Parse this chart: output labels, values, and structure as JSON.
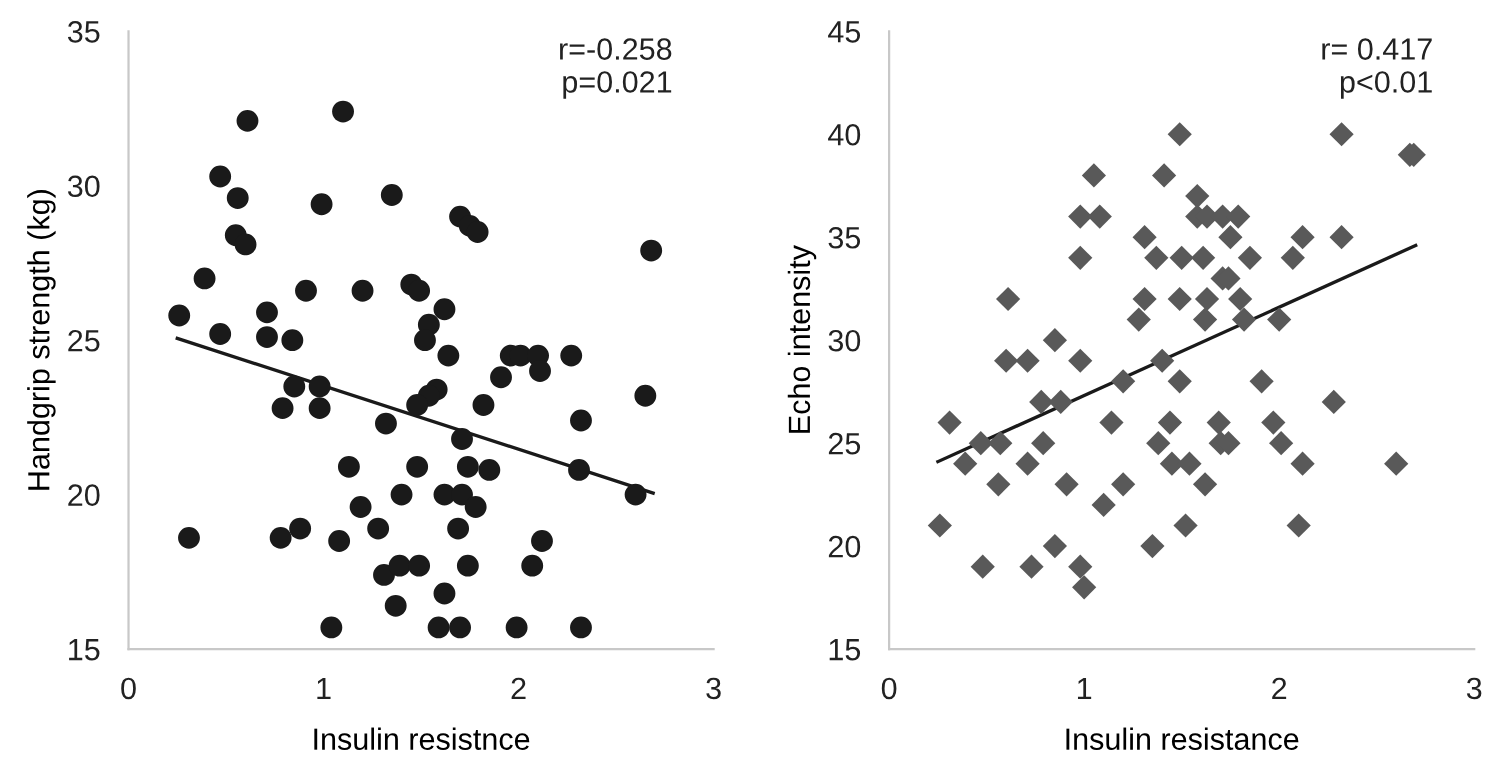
{
  "chart_data": [
    {
      "type": "scatter",
      "xlabel": "Insulin resistnce",
      "ylabel": "Handgrip strength (kg)",
      "xlim": [
        0,
        3
      ],
      "xticks": [
        0,
        1,
        2,
        3
      ],
      "ylim": [
        15,
        35
      ],
      "yticks": [
        15,
        20,
        25,
        30,
        35
      ],
      "grid": false,
      "annotations": [
        "r=-0.258\np=0.021"
      ],
      "series": [
        {
          "marker": "circle",
          "color": "#1a1a1a",
          "x": [
            0.61,
            1.1,
            0.47,
            0.56,
            0.99,
            1.35,
            0.55,
            0.6,
            1.7,
            1.75,
            1.79,
            2.68,
            0.39,
            0.91,
            1.2,
            1.45,
            1.49,
            1.62,
            0.26,
            0.71,
            0.47,
            0.71,
            0.84,
            1.54,
            1.52,
            1.64,
            1.96,
            2.01,
            2.1,
            2.27,
            2.11,
            1.91,
            0.85,
            0.98,
            1.58,
            1.54,
            1.48,
            0.79,
            0.98,
            1.82,
            2.65,
            1.32,
            2.32,
            1.71,
            1.13,
            1.48,
            1.74,
            1.85,
            2.31,
            1.4,
            1.62,
            1.71,
            2.6,
            1.19,
            1.78,
            0.31,
            0.78,
            0.88,
            1.08,
            1.28,
            1.69,
            2.12,
            1.31,
            1.39,
            1.49,
            1.74,
            2.07,
            1.37,
            1.62,
            1.04,
            1.59,
            1.7,
            1.99,
            2.32
          ],
          "values": [
            32.1,
            32.4,
            30.3,
            29.6,
            29.4,
            29.7,
            28.4,
            28.1,
            29.0,
            28.7,
            28.5,
            27.9,
            27.0,
            26.6,
            26.6,
            26.8,
            26.6,
            26.0,
            25.8,
            25.9,
            25.2,
            25.1,
            25.0,
            25.5,
            25.0,
            24.5,
            24.5,
            24.5,
            24.5,
            24.5,
            24.0,
            23.8,
            23.5,
            23.5,
            23.4,
            23.2,
            22.9,
            22.8,
            22.8,
            22.9,
            23.2,
            22.3,
            22.4,
            21.8,
            20.9,
            20.9,
            20.9,
            20.8,
            20.8,
            20.0,
            20.0,
            20.0,
            20.0,
            19.6,
            19.6,
            18.6,
            18.6,
            18.9,
            18.5,
            18.9,
            18.9,
            18.5,
            17.4,
            17.7,
            17.7,
            17.7,
            17.7,
            16.4,
            16.8,
            15.7,
            15.7,
            15.7,
            15.7,
            15.7
          ]
        },
        {
          "type": "line",
          "marker": "none",
          "color": "#1a1a1a",
          "x": [
            0.25,
            2.69
          ],
          "values": [
            25.06,
            20.05
          ]
        }
      ]
    },
    {
      "type": "scatter",
      "xlabel": "Insulin resistance",
      "ylabel": "Echo intensity",
      "xlim": [
        0,
        3
      ],
      "xticks": [
        0,
        1,
        2,
        3
      ],
      "ylim": [
        15,
        45
      ],
      "yticks": [
        15,
        20,
        25,
        30,
        35,
        40,
        45
      ],
      "grid": false,
      "annotations": [
        "r= 0.417\np<0.01"
      ],
      "series": [
        {
          "marker": "diamond",
          "color": "#595959",
          "x": [
            1.49,
            2.32,
            2.67,
            2.69,
            1.05,
            1.41,
            1.58,
            0.98,
            1.08,
            1.58,
            1.63,
            1.71,
            1.79,
            1.31,
            1.75,
            2.12,
            2.32,
            0.98,
            1.37,
            1.5,
            1.61,
            1.85,
            2.07,
            1.71,
            1.74,
            0.61,
            1.31,
            1.49,
            1.63,
            1.8,
            1.28,
            1.62,
            1.82,
            2.0,
            0.85,
            0.6,
            0.71,
            0.98,
            1.4,
            1.2,
            1.49,
            1.91,
            0.78,
            0.88,
            2.28,
            0.31,
            1.14,
            1.44,
            1.69,
            1.97,
            0.47,
            0.57,
            0.79,
            1.38,
            1.7,
            1.74,
            2.01,
            0.39,
            0.71,
            1.45,
            1.54,
            2.12,
            2.6,
            0.56,
            0.91,
            1.2,
            1.62,
            1.1,
            0.26,
            1.52,
            2.1,
            0.85,
            1.35,
            0.48,
            0.73,
            0.98,
            1.0
          ],
          "values": [
            40,
            40,
            39,
            39,
            38,
            38,
            37,
            36,
            36,
            36,
            36,
            36,
            36,
            35,
            35,
            35,
            35,
            34,
            34,
            34,
            34,
            34,
            34,
            33,
            33,
            32,
            32,
            32,
            32,
            32,
            31,
            31,
            31,
            31,
            30,
            29,
            29,
            29,
            29,
            28,
            28,
            28,
            27,
            27,
            27,
            26,
            26,
            26,
            26,
            26,
            25,
            25,
            25,
            25,
            25,
            25,
            25,
            24,
            24,
            24,
            24,
            24,
            24,
            23,
            23,
            23,
            23,
            22,
            21,
            21,
            21,
            20,
            20,
            19,
            19,
            19,
            18
          ]
        },
        {
          "type": "line",
          "marker": "none",
          "color": "#1a1a1a",
          "x": [
            0.25,
            2.7
          ],
          "values": [
            24.1,
            34.6
          ]
        }
      ]
    }
  ]
}
